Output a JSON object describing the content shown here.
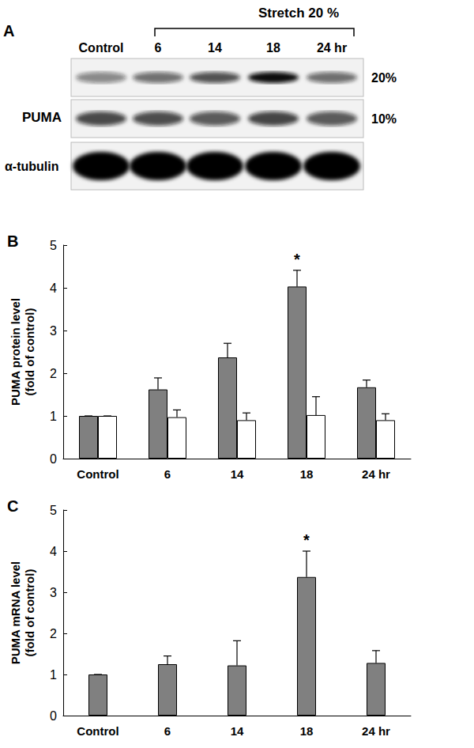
{
  "blot": {
    "label": "A",
    "header": "Stretch 20 %",
    "lanes": [
      "Control",
      "6",
      "14",
      "18",
      "24 hr"
    ],
    "protein": "PUMA",
    "loading_control": "α-tubulin",
    "rows": [
      "20%",
      "10%"
    ]
  },
  "chart_data": [
    {
      "type": "bar",
      "title": "B",
      "categories": [
        "Control",
        "6",
        "14",
        "18",
        "24 hr"
      ],
      "ylabel": "PUMA protein level\n(fold of control)",
      "ylim": [
        0,
        5
      ],
      "yticks": [
        0,
        1,
        2,
        3,
        4,
        5
      ],
      "grid": false,
      "series": [
        {
          "color": "#808080",
          "values": [
            1,
            1.62,
            2.37,
            4.03,
            1.67
          ],
          "errors": [
            0,
            0.27,
            0.33,
            0.38,
            0.17
          ]
        },
        {
          "color": "#ffffff",
          "values": [
            1,
            0.97,
            0.9,
            1.02,
            0.9
          ],
          "errors": [
            0,
            0.17,
            0.17,
            0.43,
            0.15
          ]
        }
      ],
      "annotations": [
        {
          "text": "*",
          "category": "18",
          "series": 0
        }
      ]
    },
    {
      "type": "bar",
      "title": "C",
      "categories": [
        "Control",
        "6",
        "14",
        "18",
        "24 hr"
      ],
      "ylabel": "PUMA mRNA level\n(fold of control)",
      "ylim": [
        0,
        5
      ],
      "yticks": [
        0,
        1,
        2,
        3,
        4,
        5
      ],
      "grid": false,
      "series": [
        {
          "color": "#808080",
          "values": [
            1,
            1.25,
            1.22,
            3.37,
            1.28
          ],
          "errors": [
            0,
            0.2,
            0.6,
            0.63,
            0.3
          ]
        }
      ],
      "annotations": [
        {
          "text": "*",
          "category": "18",
          "series": 0
        }
      ]
    }
  ]
}
